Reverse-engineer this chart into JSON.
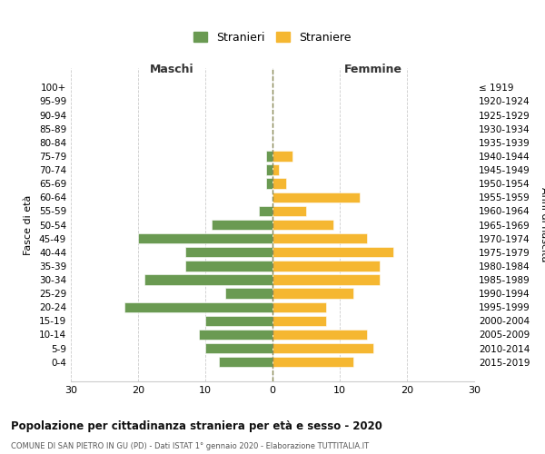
{
  "age_groups": [
    "100+",
    "95-99",
    "90-94",
    "85-89",
    "80-84",
    "75-79",
    "70-74",
    "65-69",
    "60-64",
    "55-59",
    "50-54",
    "45-49",
    "40-44",
    "35-39",
    "30-34",
    "25-29",
    "20-24",
    "15-19",
    "10-14",
    "5-9",
    "0-4"
  ],
  "birth_years": [
    "≤ 1919",
    "1920-1924",
    "1925-1929",
    "1930-1934",
    "1935-1939",
    "1940-1944",
    "1945-1949",
    "1950-1954",
    "1955-1959",
    "1960-1964",
    "1965-1969",
    "1970-1974",
    "1975-1979",
    "1980-1984",
    "1985-1989",
    "1990-1994",
    "1995-1999",
    "2000-2004",
    "2005-2009",
    "2010-2014",
    "2015-2019"
  ],
  "maschi": [
    0,
    0,
    0,
    0,
    0,
    1,
    1,
    1,
    0,
    2,
    9,
    20,
    13,
    13,
    19,
    7,
    22,
    10,
    11,
    10,
    8
  ],
  "femmine": [
    0,
    0,
    0,
    0,
    0,
    3,
    1,
    2,
    13,
    5,
    9,
    14,
    18,
    16,
    16,
    12,
    8,
    8,
    14,
    15,
    12
  ],
  "color_maschi": "#6a9a52",
  "color_femmine": "#f5b731",
  "title": "Popolazione per cittadinanza straniera per età e sesso - 2020",
  "subtitle": "COMUNE DI SAN PIETRO IN GU (PD) - Dati ISTAT 1° gennaio 2020 - Elaborazione TUTTITALIA.IT",
  "xlabel_left": "Maschi",
  "xlabel_right": "Femmine",
  "ylabel_left": "Fasce di età",
  "ylabel_right": "Anni di nascita",
  "legend_maschi": "Stranieri",
  "legend_femmine": "Straniere",
  "xlim": 30,
  "background_color": "#ffffff",
  "grid_color": "#cccccc"
}
